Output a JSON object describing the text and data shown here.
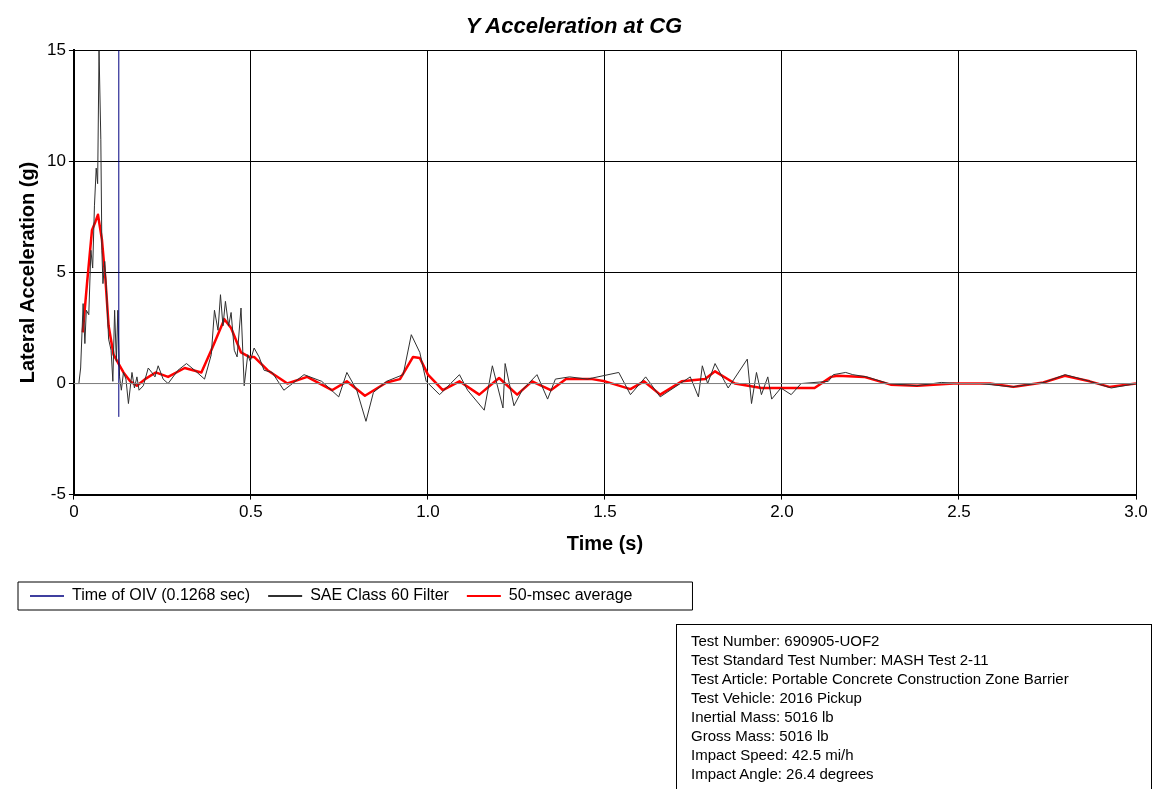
{
  "chart_data": {
    "type": "line",
    "title": "Y Acceleration at CG",
    "xlabel": "Time (s)",
    "ylabel": "Lateral Acceleration (g)",
    "xlim": [
      0,
      3
    ],
    "xticks": [
      0,
      {
        "value": 0.5,
        "label": "0.5"
      },
      {
        "value": 1,
        "label": "1.0"
      },
      {
        "value": 1.5,
        "label": "1.5"
      },
      {
        "value": 2,
        "label": "2.0"
      },
      {
        "value": 2.5,
        "label": "2.5"
      },
      {
        "value": 3,
        "label": "3.0"
      }
    ],
    "ylim": [
      -5,
      15
    ],
    "yticks": [
      -5,
      0,
      5,
      10,
      15
    ],
    "grid": true,
    "legend": "bottom",
    "marker": "none",
    "line_style": "solid",
    "ref_lines": [
      {
        "axis": "x",
        "value": 0.1268,
        "label": "Time of OIV (0.1268 sec)",
        "color": "#000080"
      }
    ],
    "series": [
      {
        "name": "SAE Class 60 Filter",
        "color": "#303030",
        "x": [
          0,
          0.014,
          0.019,
          0.026,
          0.031,
          0.035,
          0.042,
          0.048,
          0.053,
          0.058,
          0.063,
          0.067,
          0.071,
          0.076,
          0.079,
          0.082,
          0.087,
          0.092,
          0.098,
          0.105,
          0.11,
          0.115,
          0.12,
          0.124,
          0.129,
          0.134,
          0.14,
          0.147,
          0.154,
          0.164,
          0.171,
          0.178,
          0.184,
          0.196,
          0.21,
          0.22,
          0.229,
          0.238,
          0.252,
          0.266,
          0.294,
          0.318,
          0.341,
          0.369,
          0.388,
          0.397,
          0.407,
          0.414,
          0.421,
          0.428,
          0.437,
          0.444,
          0.453,
          0.461,
          0.472,
          0.481,
          0.491,
          0.498,
          0.509,
          0.523,
          0.537,
          0.56,
          0.593,
          0.65,
          0.7,
          0.748,
          0.771,
          0.799,
          0.825,
          0.846,
          0.883,
          0.93,
          0.953,
          0.977,
          0.995,
          1.033,
          1.089,
          1.112,
          1.159,
          1.182,
          1.212,
          1.218,
          1.243,
          1.266,
          1.308,
          1.338,
          1.36,
          1.4,
          1.45,
          1.539,
          1.572,
          1.615,
          1.656,
          1.741,
          1.764,
          1.775,
          1.79,
          1.811,
          1.848,
          1.902,
          1.914,
          1.928,
          1.942,
          1.96,
          1.971,
          1.997,
          2.026,
          2.054,
          2.131,
          2.145,
          2.18,
          2.2,
          2.24,
          2.3,
          2.38,
          2.45,
          2.5,
          2.56,
          2.65,
          2.74,
          2.8,
          2.87,
          2.93,
          3.0
        ],
        "values": [
          0,
          0,
          0.7,
          3.6,
          1.8,
          3.3,
          3.1,
          6.0,
          5.2,
          8.0,
          9.7,
          9.0,
          15.0,
          11.0,
          6.0,
          4.5,
          5.5,
          4.2,
          2.0,
          1.5,
          0.1,
          3.3,
          1.0,
          3.3,
          0.3,
          -0.3,
          0.5,
          0.2,
          -0.9,
          0.5,
          -0.2,
          0.3,
          -0.3,
          -0.1,
          0.7,
          0.5,
          0.3,
          0.8,
          0.2,
          0,
          0.6,
          0.9,
          0.6,
          0.2,
          1.3,
          3.3,
          2.4,
          4.0,
          2.6,
          3.7,
          2.6,
          3.2,
          1.5,
          1.2,
          3.4,
          -0.1,
          1.3,
          1.0,
          1.6,
          1.2,
          0.6,
          0.5,
          -0.3,
          0.4,
          0.1,
          -0.6,
          0.5,
          -0.3,
          -1.7,
          -0.4,
          0.1,
          0.4,
          2.2,
          1.4,
          0.1,
          -0.5,
          0.4,
          -0.3,
          -1.2,
          0.8,
          -1.1,
          0.9,
          -1.0,
          -0.3,
          0.4,
          -0.7,
          0.2,
          0.3,
          0.2,
          0.5,
          -0.5,
          0.3,
          -0.6,
          0.3,
          -0.6,
          0.8,
          0,
          0.9,
          -0.2,
          1.1,
          -0.9,
          0.5,
          -0.5,
          0.3,
          -0.7,
          -0.2,
          -0.5,
          0,
          0.1,
          0.4,
          0.5,
          0.4,
          0.3,
          0,
          -0.1,
          0.05,
          0,
          0,
          -0.15,
          0.05,
          0.4,
          0.1,
          -0.2,
          0
        ]
      },
      {
        "name": "50-msec average",
        "color": "#ff0000",
        "x": [
          0.025,
          0.037,
          0.051,
          0.061,
          0.068,
          0.079,
          0.089,
          0.098,
          0.112,
          0.126,
          0.14,
          0.159,
          0.178,
          0.201,
          0.231,
          0.266,
          0.313,
          0.36,
          0.388,
          0.425,
          0.444,
          0.472,
          0.495,
          0.509,
          0.547,
          0.603,
          0.659,
          0.729,
          0.771,
          0.822,
          0.883,
          0.921,
          0.958,
          0.977,
          1.0,
          1.042,
          1.089,
          1.145,
          1.201,
          1.252,
          1.294,
          1.347,
          1.39,
          1.464,
          1.5,
          1.572,
          1.61,
          1.656,
          1.717,
          1.783,
          1.811,
          1.867,
          1.942,
          2.017,
          2.092,
          2.139,
          2.157,
          2.232,
          2.307,
          2.382,
          2.485,
          2.588,
          2.654,
          2.738,
          2.799,
          2.869,
          2.925,
          3.0
        ],
        "values": [
          2.3,
          4.5,
          6.9,
          7.3,
          7.6,
          6.5,
          4.7,
          2.6,
          1.3,
          0.9,
          0.5,
          0.1,
          -0.1,
          0.2,
          0.5,
          0.3,
          0.7,
          0.5,
          1.5,
          2.9,
          2.5,
          1.4,
          1.2,
          1.2,
          0.6,
          0,
          0.3,
          -0.3,
          0.1,
          -0.55,
          0.05,
          0.2,
          1.2,
          1.15,
          0.4,
          -0.3,
          0.1,
          -0.5,
          0.25,
          -0.5,
          0.1,
          -0.3,
          0.2,
          0.2,
          0.1,
          -0.25,
          0.1,
          -0.5,
          0.1,
          0.2,
          0.55,
          0,
          -0.2,
          -0.2,
          -0.2,
          0.3,
          0.35,
          0.3,
          -0.05,
          -0.1,
          0,
          0,
          -0.15,
          0.05,
          0.35,
          0.1,
          -0.15,
          0
        ]
      }
    ],
    "annotations": [
      "Test Number: 690905-UOF2",
      "Test Standard Test Number: MASH Test 2-11",
      "Test Article: Portable Concrete Construction Zone Barrier",
      "Test Vehicle: 2016 Pickup",
      "Inertial Mass: 5016 lb",
      "Gross Mass: 5016 lb",
      "Impact Speed: 42.5 mi/h",
      "Impact Angle: 26.4 degrees"
    ]
  }
}
